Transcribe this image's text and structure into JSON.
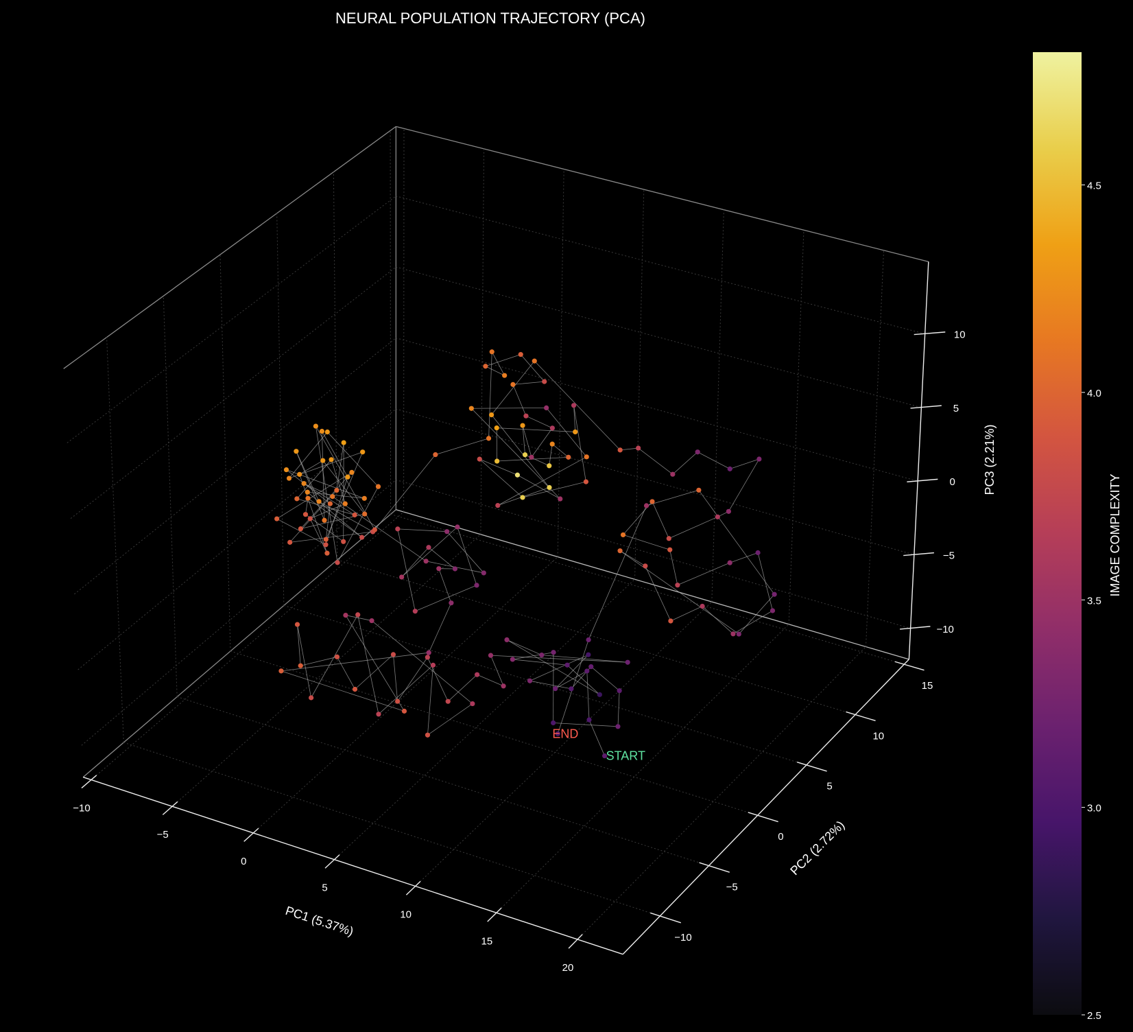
{
  "chart_data": {
    "type": "scatter3d",
    "title": "NEURAL POPULATION TRAJECTORY (PCA)",
    "xlabel": "PC1 (5.37%)",
    "ylabel": "PC2 (2.72%)",
    "zlabel": "PC3 (2.21%)",
    "xlim": [
      -10.5,
      22.8
    ],
    "ylim": [
      -13.8,
      15.5
    ],
    "zlim": [
      -12.1,
      14.9
    ],
    "xticks": [
      -10,
      -5,
      0,
      5,
      10,
      15,
      20
    ],
    "yticks": [
      -10,
      -5,
      0,
      5,
      10,
      15
    ],
    "zticks": [
      -10,
      -5,
      0,
      5,
      10
    ],
    "xtick_labels": [
      "−10",
      "−5",
      "0",
      "5",
      "10",
      "15",
      "20"
    ],
    "ytick_labels": [
      "−10",
      "−5",
      "0",
      "5",
      "10",
      "15"
    ],
    "ztick_labels": [
      "−10",
      "−5",
      "0",
      "5",
      "10"
    ],
    "grid": true,
    "connected": true,
    "colormap": "inferno",
    "colorbar": {
      "label": "IMAGE COMPLEXITY",
      "range": [
        2.5,
        4.82
      ],
      "ticks": [
        2.5,
        3.0,
        3.5,
        4.0,
        4.5
      ],
      "tick_labels": [
        "2.5",
        "3.0",
        "3.5",
        "4.0",
        "4.5"
      ]
    },
    "annotations": [
      {
        "text": "START",
        "point": [
          16.8,
          -6,
          -6.3
        ],
        "color": "#5fe3a1"
      },
      {
        "text": "END",
        "point": [
          13.9,
          -6,
          -5.8
        ],
        "color": "#ff5a4e"
      }
    ],
    "point_fields": [
      "pc1",
      "pc2",
      "pc3",
      "image_complexity"
    ],
    "points": [
      [
        16.8,
        -6,
        -6.3,
        3.1
      ],
      [
        15.2,
        -5,
        -5.1,
        3.0
      ],
      [
        14.1,
        -3.5,
        -3.2,
        3.1
      ],
      [
        12.6,
        -4.2,
        -4.4,
        3.2
      ],
      [
        13.8,
        -2.9,
        -2.6,
        2.95
      ],
      [
        11.4,
        -4.8,
        -3.9,
        3.3
      ],
      [
        12.9,
        -3.1,
        -5.0,
        3.05
      ],
      [
        14.9,
        -4.4,
        -2.1,
        3.15
      ],
      [
        16.3,
        -3.8,
        -3.6,
        3.1
      ],
      [
        17.1,
        -5.2,
        -4.8,
        3.2
      ],
      [
        13.3,
        -5.5,
        -5.6,
        3.0
      ],
      [
        11.9,
        -3.3,
        -2.8,
        3.25
      ],
      [
        10.2,
        -4.6,
        -3.0,
        3.35
      ],
      [
        12.2,
        -2.4,
        -4.1,
        3.1
      ],
      [
        14.6,
        -3.0,
        -4.9,
        2.9
      ],
      [
        9.4,
        -3.9,
        -2.4,
        3.4
      ],
      [
        10.8,
        -2.7,
        -3.7,
        3.3
      ],
      [
        15.8,
        -2.2,
        -2.9,
        3.2
      ],
      [
        8.6,
        -4.2,
        -3.5,
        3.45
      ],
      [
        9.9,
        -5.0,
        -4.6,
        3.5
      ],
      [
        6.1,
        -1.6,
        -7.2,
        3.6
      ],
      [
        4.8,
        -2.4,
        -8.9,
        3.75
      ],
      [
        3.2,
        -1.9,
        -6.8,
        3.7
      ],
      [
        1.9,
        -2.8,
        -9.6,
        3.85
      ],
      [
        0.6,
        -1.2,
        -7.9,
        3.8
      ],
      [
        -1.1,
        -2.3,
        -10.1,
        3.9
      ],
      [
        -2.6,
        -1.7,
        -8.8,
        3.85
      ],
      [
        -4.3,
        -2.6,
        -9.4,
        3.95
      ],
      [
        -5.2,
        -1.5,
        -7.6,
        3.9
      ],
      [
        -3.4,
        -3.0,
        -11.0,
        3.8
      ],
      [
        -1.8,
        -0.9,
        -6.2,
        3.75
      ],
      [
        0.9,
        -3.1,
        -10.6,
        3.7
      ],
      [
        2.7,
        -0.6,
        -8.3,
        3.65
      ],
      [
        4.1,
        -3.3,
        -10.8,
        3.85
      ],
      [
        5.3,
        -0.8,
        -9.9,
        3.6
      ],
      [
        -0.2,
        -2.0,
        -5.4,
        3.5
      ],
      [
        -2.9,
        -0.4,
        -6.9,
        3.55
      ],
      [
        1.4,
        -1.4,
        -11.3,
        3.9
      ],
      [
        -5.8,
        -2.2,
        -10.5,
        3.95
      ],
      [
        3.8,
        -2.7,
        -5.8,
        3.45
      ],
      [
        2.4,
        1.6,
        -5.6,
        3.4
      ],
      [
        1.1,
        2.4,
        -4.2,
        3.5
      ],
      [
        2.9,
        1.2,
        -2.9,
        3.35
      ],
      [
        0.2,
        2.8,
        -3.3,
        3.6
      ],
      [
        -0.9,
        1.9,
        -5.1,
        3.55
      ],
      [
        1.8,
        3.1,
        -1.6,
        3.45
      ],
      [
        3.6,
        2.2,
        -4.4,
        3.3
      ],
      [
        0.6,
        0.9,
        -6.3,
        3.65
      ],
      [
        -1.6,
        2.6,
        -2.5,
        3.7
      ],
      [
        2.2,
        1.5,
        -0.8,
        3.4
      ],
      [
        4.3,
        1.8,
        -3.1,
        3.35
      ],
      [
        -0.3,
        3.3,
        -4.7,
        3.5
      ],
      [
        -6.0,
        3.1,
        -2.0,
        4.1
      ],
      [
        -7.3,
        2.4,
        -1.1,
        4.2
      ],
      [
        -5.1,
        3.8,
        -3.4,
        3.9
      ],
      [
        -8.1,
        2.9,
        -2.7,
        4.0
      ],
      [
        -6.8,
        4.2,
        -0.4,
        4.3
      ],
      [
        -4.6,
        2.2,
        -1.5,
        4.15
      ],
      [
        -7.7,
        3.5,
        -4.3,
        3.85
      ],
      [
        -5.5,
        1.8,
        -4.9,
        3.95
      ],
      [
        -8.6,
        3.9,
        -1.8,
        4.25
      ],
      [
        -6.3,
        2.7,
        0.6,
        4.3
      ],
      [
        -4.2,
        3.4,
        -2.8,
        4.05
      ],
      [
        -7.0,
        1.6,
        -3.6,
        3.9
      ],
      [
        -5.8,
        4.6,
        -1.2,
        4.2
      ],
      [
        -8.9,
        2.2,
        -3.9,
        3.95
      ],
      [
        -6.6,
        3.3,
        -5.6,
        3.85
      ],
      [
        -4.9,
        2.9,
        -0.2,
        4.3
      ],
      [
        -7.5,
        4.4,
        1.2,
        4.25
      ],
      [
        -5.3,
        1.3,
        -2.3,
        4.1
      ],
      [
        -8.3,
        3.2,
        0.3,
        4.3
      ],
      [
        -6.1,
        2.0,
        -1.7,
        4.2
      ],
      [
        -3.9,
        3.7,
        -4.1,
        3.8
      ],
      [
        -7.9,
        1.9,
        -5.0,
        3.9
      ],
      [
        -6.9,
        4.8,
        -2.9,
        4.0
      ],
      [
        -5.6,
        3.6,
        1.5,
        4.35
      ],
      [
        -4.4,
        1.7,
        -3.7,
        3.85
      ],
      [
        -8.4,
        4.1,
        -4.6,
        3.9
      ],
      [
        -7.2,
        2.6,
        -2.2,
        4.1
      ],
      [
        -5.0,
        4.3,
        -5.2,
        3.8
      ],
      [
        -6.4,
        1.4,
        -0.8,
        4.2
      ],
      [
        -3.6,
        2.5,
        -1.0,
        4.15
      ],
      [
        -8.8,
        3.0,
        -1.0,
        4.25
      ],
      [
        -6.7,
        3.9,
        -3.2,
        4.0
      ],
      [
        -5.9,
        2.3,
        -4.4,
        3.95
      ],
      [
        -4.7,
        4.0,
        0.9,
        4.3
      ],
      [
        -7.6,
        1.5,
        -0.3,
        4.2
      ],
      [
        -6.2,
        3.0,
        2.4,
        4.3
      ],
      [
        -3.2,
        3.2,
        -0.5,
        4.1
      ],
      [
        -5.4,
        2.6,
        -6.0,
        3.8
      ],
      [
        -7.4,
        3.7,
        2.0,
        4.25
      ],
      [
        -2.7,
        2.1,
        -2.6,
        3.9
      ],
      [
        -1.5,
        6,
        0.5,
        4.0
      ],
      [
        0.5,
        8,
        1.0,
        4.1
      ],
      [
        -0.8,
        10.2,
        5.2,
        4.1
      ],
      [
        0.4,
        9.6,
        4.3,
        4.15
      ],
      [
        -1.6,
        10.8,
        3.6,
        4.0
      ],
      [
        1.2,
        9.9,
        5.8,
        3.95
      ],
      [
        2.3,
        10.5,
        3.9,
        3.8
      ],
      [
        0.0,
        11.0,
        2.7,
        4.1
      ],
      [
        1.9,
        9.4,
        2.1,
        3.7
      ],
      [
        3.1,
        10.1,
        1.2,
        3.6
      ],
      [
        2.6,
        8.9,
        -0.2,
        3.5
      ],
      [
        0.9,
        10.6,
        0.4,
        4.3
      ],
      [
        1.6,
        9.8,
        -0.9,
        4.6
      ],
      [
        2.8,
        10.3,
        -1.6,
        4.55
      ],
      [
        3.5,
        9.5,
        0.6,
        4.2
      ],
      [
        4.2,
        10.0,
        -0.4,
        4.0
      ],
      [
        0.3,
        9.1,
        -1.3,
        4.5
      ],
      [
        -0.6,
        10.4,
        -0.1,
        4.35
      ],
      [
        4.8,
        9.7,
        1.7,
        4.3
      ],
      [
        3.9,
        10.9,
        2.5,
        3.6
      ],
      [
        5.2,
        10.2,
        -1.9,
        3.9
      ],
      [
        2.0,
        9.0,
        -3.2,
        4.6
      ],
      [
        -1.2,
        9.7,
        -2.0,
        3.8
      ],
      [
        1.0,
        10.0,
        -2.6,
        4.7
      ],
      [
        4.5,
        8.8,
        -2.4,
        3.5
      ],
      [
        -2.0,
        10.1,
        1.0,
        4.2
      ],
      [
        3.3,
        9.2,
        3.2,
        3.45
      ],
      [
        5.6,
        9.6,
        0.3,
        4.1
      ],
      [
        0.7,
        8.6,
        -3.9,
        3.7
      ],
      [
        2.5,
        10.8,
        -3.5,
        4.6
      ],
      [
        -0.2,
        9.3,
        1.6,
        4.3
      ],
      [
        1.4,
        10.9,
        4.8,
        4.1
      ],
      [
        8.4,
        8.5,
        2.3,
        3.9
      ],
      [
        10.1,
        7.6,
        3.5,
        3.7
      ],
      [
        11.9,
        8.2,
        1.9,
        3.5
      ],
      [
        13.6,
        7.9,
        4.1,
        3.3
      ],
      [
        15.2,
        8.6,
        3.0,
        3.2
      ],
      [
        17.3,
        8.1,
        4.6,
        3.3
      ],
      [
        16.0,
        7.3,
        1.2,
        3.4
      ],
      [
        14.4,
        8.8,
        -0.6,
        3.6
      ],
      [
        12.2,
        7.5,
        -1.9,
        3.8
      ],
      [
        10.6,
        8.3,
        -0.4,
        4.0
      ],
      [
        9.2,
        7.7,
        -2.7,
        4.1
      ],
      [
        11.4,
        8.9,
        -3.8,
        3.9
      ],
      [
        13.0,
        7.2,
        -4.6,
        3.7
      ],
      [
        15.5,
        8.4,
        -3.1,
        3.4
      ],
      [
        17.6,
        7.8,
        -1.4,
        3.2
      ],
      [
        18.4,
        8.2,
        -5.3,
        3.3
      ],
      [
        16.7,
        7.0,
        -6.6,
        3.5
      ],
      [
        14.1,
        8.0,
        -6.2,
        3.6
      ],
      [
        12.5,
        7.4,
        -7.3,
        3.9
      ],
      [
        10.0,
        8.7,
        -5.2,
        3.8
      ],
      [
        8.9,
        7.9,
        -4.0,
        4.0
      ],
      [
        15.9,
        8.9,
        -8.1,
        3.3
      ],
      [
        18.9,
        7.5,
        -3.6,
        3.25
      ],
      [
        13.3,
        8.6,
        1.0,
        4.0
      ],
      [
        11.0,
        7.1,
        0.2,
        3.5
      ],
      [
        12.0,
        0,
        -4.0,
        3.2
      ],
      [
        13.9,
        -6,
        -5.8,
        3.0
      ]
    ]
  }
}
